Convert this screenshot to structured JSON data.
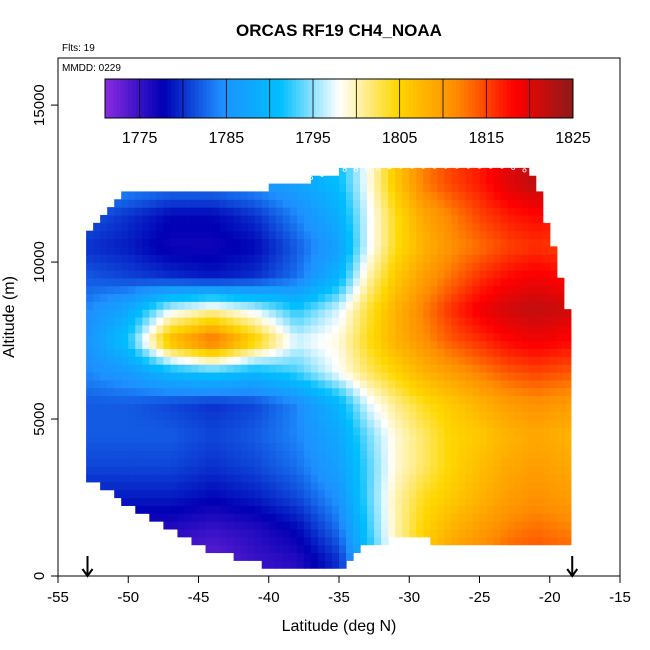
{
  "chart_data": {
    "type": "heatmap",
    "title": "ORCAS RF19 CH4_NOAA",
    "notes": [
      "Flts: 19",
      "MMDD: 0229"
    ],
    "xlabel": "Latitude (deg N)",
    "ylabel": "Altitude (m)",
    "xlim": [
      -55,
      -15
    ],
    "ylim": [
      0,
      16500
    ],
    "xticks": [
      -55,
      -50,
      -45,
      -40,
      -35,
      -30,
      -25,
      -20,
      -15
    ],
    "yticks": [
      0,
      5000,
      10000,
      15000
    ],
    "colorbar": {
      "range": [
        1771,
        1825
      ],
      "ticks": [
        1775,
        1785,
        1795,
        1805,
        1815,
        1825
      ],
      "colors": [
        "#8a2be2",
        "#0000b4",
        "#1e90ff",
        "#00bfff",
        "#ffffff",
        "#ffd700",
        "#ff8c00",
        "#ff0000",
        "#8b1a1a"
      ]
    },
    "markers_at_x": [
      -52.9,
      -18.4
    ],
    "profile_lat": [
      -53,
      -50,
      -47,
      -44,
      -41,
      -38,
      -35,
      -33,
      -31,
      -29,
      -27,
      -25,
      -23,
      -21,
      -18.5
    ],
    "profile_alt_min": [
      3100,
      2300,
      1500,
      800,
      400,
      200,
      200,
      1000,
      1200,
      1200,
      1000,
      1000,
      1000,
      1000,
      1000
    ],
    "profile_alt_max": [
      11000,
      12300,
      12300,
      12300,
      12300,
      12500,
      12900,
      12900,
      13000,
      13000,
      13000,
      13000,
      13000,
      12800,
      8000
    ],
    "field": {
      "lat": [
        -53,
        -50,
        -47,
        -44,
        -41,
        -38,
        -35,
        -33,
        -31,
        -29,
        -27,
        -25,
        -23,
        -21,
        -18.5
      ],
      "alt": [
        500,
        1500,
        2500,
        3500,
        4500,
        5500,
        6500,
        7500,
        8500,
        9500,
        10500,
        11500,
        12500
      ],
      "ch4": [
        [
          1773,
          1773,
          1774,
          1773,
          1775,
          1776,
          1780,
          1790,
          1800,
          1806,
          1810,
          1812,
          1814,
          1815,
          1814
        ],
        [
          1776,
          1776,
          1776,
          1775,
          1776,
          1778,
          1783,
          1792,
          1800,
          1805,
          1808,
          1810,
          1812,
          1813,
          1812
        ],
        [
          1779,
          1779,
          1779,
          1778,
          1779,
          1781,
          1785,
          1793,
          1800,
          1804,
          1806,
          1808,
          1810,
          1811,
          1810
        ],
        [
          1781,
          1781,
          1781,
          1780,
          1781,
          1783,
          1787,
          1793,
          1799,
          1802,
          1805,
          1807,
          1809,
          1810,
          1809
        ],
        [
          1782,
          1782,
          1782,
          1781,
          1782,
          1784,
          1788,
          1794,
          1799,
          1802,
          1805,
          1806,
          1808,
          1809,
          1808
        ],
        [
          1782,
          1782,
          1781,
          1780,
          1781,
          1784,
          1790,
          1797,
          1801,
          1804,
          1806,
          1808,
          1810,
          1811,
          1810
        ],
        [
          1784,
          1786,
          1790,
          1792,
          1790,
          1793,
          1798,
          1802,
          1805,
          1808,
          1810,
          1812,
          1814,
          1815,
          1814
        ],
        [
          1785,
          1792,
          1808,
          1814,
          1806,
          1797,
          1799,
          1804,
          1808,
          1811,
          1814,
          1816,
          1818,
          1819,
          1818
        ],
        [
          1784,
          1788,
          1797,
          1800,
          1797,
          1792,
          1797,
          1803,
          1808,
          1812,
          1816,
          1819,
          1821,
          1822,
          1821
        ],
        [
          1782,
          1781,
          1780,
          1779,
          1780,
          1783,
          1790,
          1800,
          1806,
          1810,
          1813,
          1816,
          1818,
          1819,
          1818
        ],
        [
          1780,
          1779,
          1777,
          1777,
          1778,
          1782,
          1787,
          1797,
          1804,
          1808,
          1811,
          1813,
          1815,
          1816,
          1815
        ],
        [
          1782,
          1780,
          1778,
          1778,
          1780,
          1784,
          1789,
          1797,
          1804,
          1809,
          1812,
          1815,
          1817,
          1818,
          1817
        ],
        [
          1786,
          1785,
          1784,
          1784,
          1785,
          1787,
          1791,
          1798,
          1806,
          1812,
          1815,
          1817,
          1820,
          1822,
          1820
        ]
      ]
    }
  }
}
